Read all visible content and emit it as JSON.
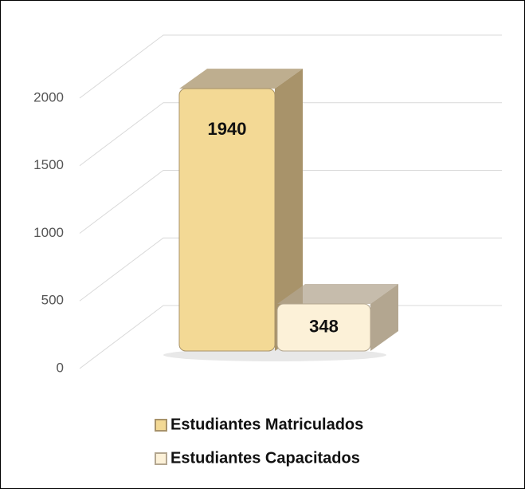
{
  "chart_data": {
    "type": "bar3d",
    "categories": [
      null
    ],
    "series": [
      {
        "name": "Estudiantes Matriculados",
        "color": "#f3d995",
        "side": "#a8936a",
        "values": [
          1940
        ]
      },
      {
        "name": "Estudiantes Capacitados",
        "color": "#fcf1d8",
        "side": "#b3a690",
        "values": [
          348
        ]
      }
    ],
    "ylim": [
      0,
      2000
    ],
    "yticks": [
      0,
      500,
      1000,
      1500,
      2000
    ],
    "grid": true,
    "legend": "bottom"
  }
}
